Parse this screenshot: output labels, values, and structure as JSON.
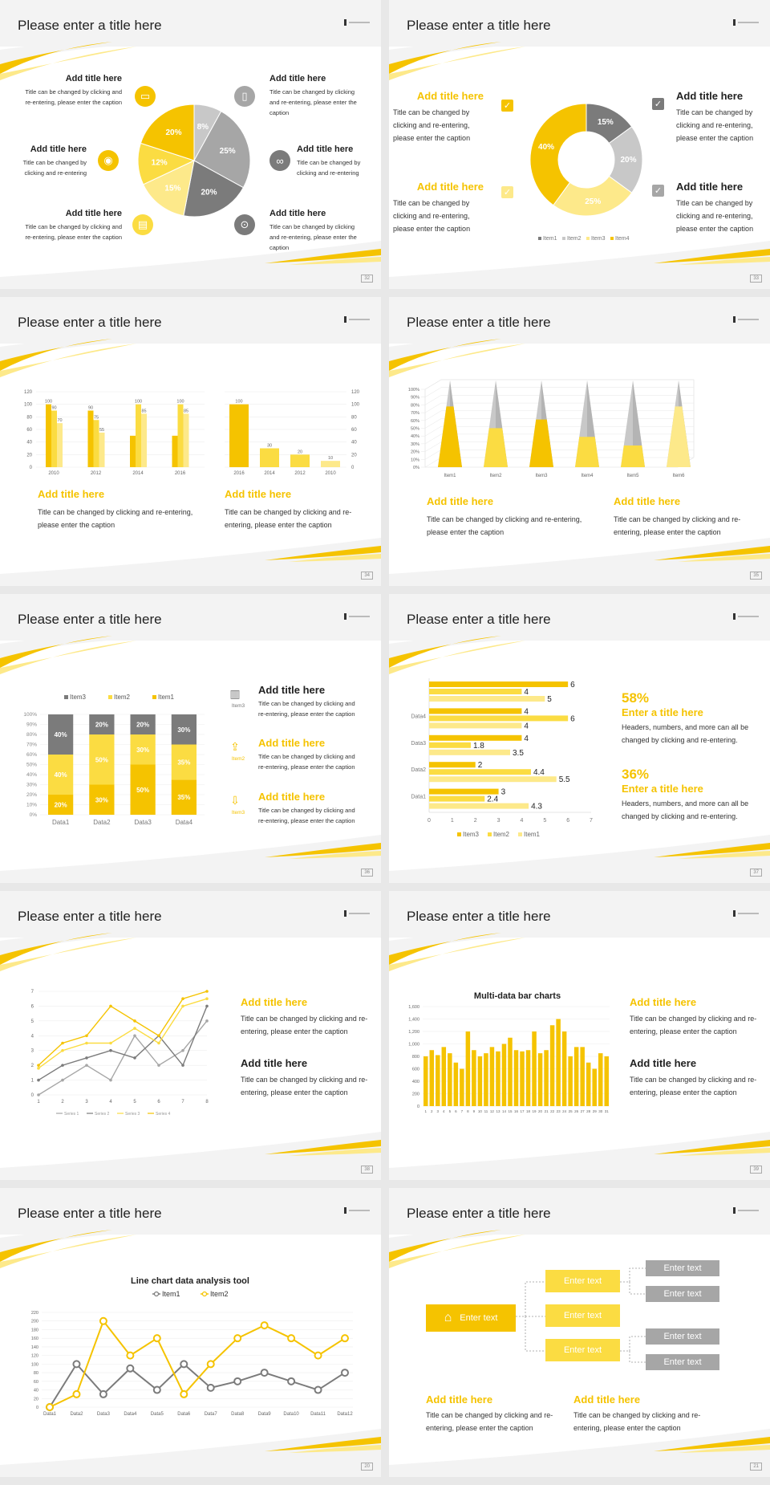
{
  "slide_title": "Please enter a title here",
  "add_title": "Add title here",
  "colors": {
    "yellow": "#f5c300",
    "yellow_mid": "#fbdc42",
    "yellow_light": "#fde98a",
    "gray": "#7b7b7b",
    "gray_mid": "#a6a6a6",
    "gray_light": "#c8c8c8"
  },
  "s12": {
    "page": "32",
    "cap_a": "Title can be changed by clicking and re-entering, please enter the caption",
    "cap_b": "Title can be changed by clicking and re-entering",
    "icons": [
      "monitor-icon",
      "phone-icon",
      "car-icon",
      "binoculars-icon",
      "printer-icon",
      "bicycle-icon"
    ]
  },
  "s13": {
    "page": "33",
    "cap": "Title can be changed by clicking and re-entering, please enter the caption"
  },
  "s14": {
    "page": "34",
    "cap": "Title can be changed by clicking and re-entering, please enter the caption"
  },
  "s15": {
    "page": "35",
    "cap": "Title can be changed by clicking and re-entering, please enter the caption"
  },
  "s16": {
    "page": "36",
    "cap": "Title can be changed by clicking and re-entering, please enter the caption",
    "side_labels": [
      "Item3",
      "Item2",
      "Item3"
    ]
  },
  "s17": {
    "page": "37",
    "stat1": "58%",
    "stat2": "36%",
    "enter_title": "Enter a title here",
    "cap": "Headers, numbers, and more can all be changed by clicking and re-entering."
  },
  "s18": {
    "page": "38",
    "cap": "Title can be changed by clicking and re-entering, please enter the caption"
  },
  "s19": {
    "page": "39",
    "cap": "Title can be changed by clicking and re-entering, please enter the caption"
  },
  "s20": {
    "page": "20"
  },
  "s21": {
    "page": "21",
    "enter_text": "Enter text",
    "cap": "Title can be changed by clicking and re-entering, please enter the caption"
  },
  "chart_data": [
    {
      "id": "pie-12",
      "type": "pie",
      "categories": [
        "A",
        "B",
        "C",
        "D",
        "E",
        "F"
      ],
      "values": [
        8,
        25,
        20,
        15,
        12,
        20
      ],
      "labels": [
        "8%",
        "25%",
        "20%",
        "15%",
        "12%",
        "20%"
      ]
    },
    {
      "id": "donut-13",
      "type": "pie",
      "categories": [
        "Item1",
        "Item2",
        "Item3",
        "Item4"
      ],
      "values": [
        15,
        20,
        25,
        40
      ],
      "labels": [
        "15%",
        "20%",
        "25%",
        "40%"
      ],
      "legend": [
        "Item1",
        "Item2",
        "Item3",
        "Item4"
      ]
    },
    {
      "id": "bar-14a",
      "type": "bar",
      "categories": [
        "2010",
        "2012",
        "2014",
        "2016"
      ],
      "series": [
        {
          "values": [
            100,
            90,
            50,
            50
          ]
        },
        {
          "values": [
            90,
            75,
            100,
            100
          ]
        },
        {
          "values": [
            70,
            55,
            85,
            85
          ]
        }
      ],
      "labels": [
        [
          "100",
          "90",
          "",
          ""
        ],
        [
          "90",
          "75",
          "100",
          "100"
        ],
        [
          "70",
          "55",
          "85",
          "85"
        ]
      ],
      "ylim": [
        0,
        120
      ],
      "yticks": [
        "0",
        "20",
        "40",
        "60",
        "80",
        "100",
        "120"
      ]
    },
    {
      "id": "bar-14b",
      "type": "bar",
      "categories": [
        "2016",
        "2014",
        "2012",
        "2010"
      ],
      "values": [
        100,
        30,
        20,
        10
      ],
      "labels": [
        "100",
        "30",
        "20",
        "10"
      ],
      "ylim": [
        0,
        120
      ],
      "yticks": [
        "0",
        "20",
        "40",
        "60",
        "80",
        "100",
        "120"
      ]
    },
    {
      "id": "cone-15",
      "type": "bar",
      "categories": [
        "Item1",
        "Item2",
        "Item3",
        "Item4",
        "Item5",
        "Item6"
      ],
      "values": [
        70,
        45,
        55,
        35,
        25,
        70
      ],
      "ylim": [
        0,
        100
      ],
      "yticks": [
        "0%",
        "10%",
        "20%",
        "30%",
        "40%",
        "50%",
        "60%",
        "70%",
        "80%",
        "90%",
        "100%"
      ]
    },
    {
      "id": "stack-16",
      "type": "bar",
      "categories": [
        "Data1",
        "Data2",
        "Data3",
        "Data4"
      ],
      "series": [
        {
          "name": "Item1",
          "values": [
            20,
            30,
            50,
            35
          ],
          "labels": [
            "20%",
            "30%",
            "50%",
            "35%"
          ]
        },
        {
          "name": "Item2",
          "values": [
            40,
            50,
            30,
            35
          ],
          "labels": [
            "40%",
            "50%",
            "30%",
            "35%"
          ]
        },
        {
          "name": "Item3",
          "values": [
            40,
            20,
            20,
            30
          ],
          "labels": [
            "40%",
            "20%",
            "20%",
            "30%"
          ]
        }
      ],
      "yticks": [
        "0%",
        "10%",
        "20%",
        "30%",
        "40%",
        "50%",
        "60%",
        "70%",
        "80%",
        "90%",
        "100%"
      ]
    },
    {
      "id": "hbar-17",
      "type": "bar",
      "categories": [
        "Data1",
        "Data2",
        "Data3",
        "Data4",
        ""
      ],
      "series": [
        {
          "name": "Item3",
          "values": [
            3,
            2,
            4,
            4,
            6
          ]
        },
        {
          "name": "Item2",
          "values": [
            2.4,
            4.4,
            1.8,
            6,
            4
          ]
        },
        {
          "name": "Item1",
          "values": [
            4.3,
            5.5,
            3.5,
            4,
            5
          ]
        }
      ],
      "labels": [
        [
          "3",
          "2",
          "4",
          "4",
          "6"
        ],
        [
          "2.4",
          "4.4",
          "1.8",
          "6",
          "4"
        ],
        [
          "4.3",
          "5.5",
          "3.5",
          "4",
          "5"
        ]
      ],
      "xlim": [
        0,
        7
      ],
      "xticks": [
        "0",
        "1",
        "2",
        "3",
        "4",
        "5",
        "6",
        "7"
      ]
    },
    {
      "id": "line-18",
      "type": "line",
      "x": [
        "1",
        "2",
        "3",
        "4",
        "5",
        "6",
        "7",
        "8"
      ],
      "series": [
        {
          "name": "Series 1",
          "values": [
            0,
            1,
            2,
            1,
            4,
            2,
            3,
            5
          ]
        },
        {
          "name": "Series 2",
          "values": [
            1,
            2,
            2.5,
            3,
            2.5,
            4,
            2,
            6
          ]
        },
        {
          "name": "Series 3",
          "values": [
            1.8,
            3,
            3.5,
            3.5,
            4.5,
            3.5,
            6,
            6.5
          ]
        },
        {
          "name": "Series 4",
          "values": [
            2,
            3.5,
            4,
            6,
            5,
            4,
            6.5,
            7
          ]
        }
      ],
      "ylim": [
        0,
        7
      ],
      "yticks": [
        "0",
        "1",
        "2",
        "3",
        "4",
        "5",
        "6",
        "7"
      ]
    },
    {
      "id": "bars-19",
      "type": "bar",
      "title": "Multi-data bar charts",
      "categories": [
        "1",
        "2",
        "3",
        "4",
        "5",
        "6",
        "7",
        "8",
        "9",
        "10",
        "11",
        "12",
        "13",
        "14",
        "15",
        "16",
        "17",
        "18",
        "19",
        "20",
        "21",
        "22",
        "23",
        "24",
        "25",
        "26",
        "27",
        "28",
        "29",
        "30",
        "31"
      ],
      "values": [
        800,
        900,
        820,
        950,
        850,
        700,
        600,
        1200,
        900,
        800,
        850,
        950,
        880,
        1000,
        1100,
        900,
        880,
        900,
        1200,
        850,
        900,
        1300,
        1400,
        1200,
        800,
        950,
        950,
        700,
        600,
        850,
        800
      ],
      "ylim": [
        0,
        1600
      ],
      "yticks": [
        "0",
        "200",
        "400",
        "600",
        "800",
        "1,000",
        "1,200",
        "1,400",
        "1,600"
      ]
    },
    {
      "id": "line-20",
      "type": "line",
      "title": "Line chart data analysis tool",
      "x": [
        "Data1",
        "Data2",
        "Data3",
        "Data4",
        "Data5",
        "Data6",
        "Data7",
        "Data8",
        "Data9",
        "Data10",
        "Data11",
        "Data12"
      ],
      "series": [
        {
          "name": "Item1",
          "values": [
            0,
            100,
            30,
            90,
            40,
            100,
            45,
            60,
            80,
            60,
            40,
            80
          ]
        },
        {
          "name": "Item2",
          "values": [
            0,
            30,
            200,
            120,
            160,
            30,
            100,
            160,
            190,
            160,
            120,
            160
          ]
        }
      ],
      "ylim": [
        0,
        220
      ],
      "yticks": [
        "0",
        "20",
        "40",
        "60",
        "80",
        "100",
        "120",
        "140",
        "160",
        "180",
        "200",
        "220"
      ]
    }
  ]
}
